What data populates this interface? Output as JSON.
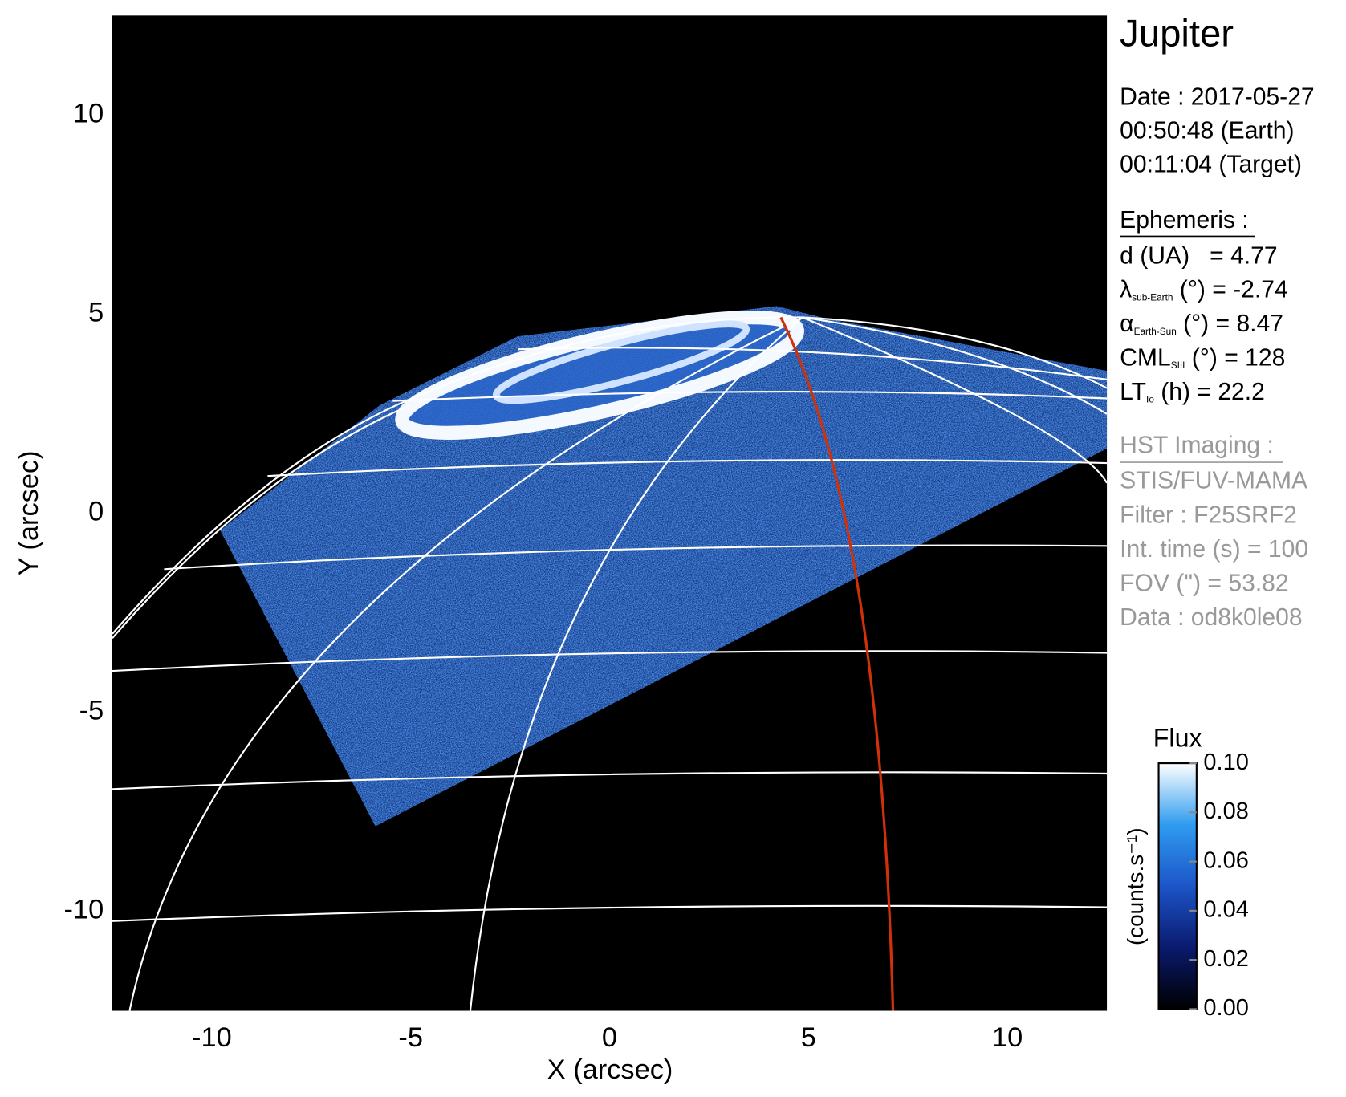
{
  "chart_data": {
    "type": "image",
    "xlabel": "X (arcsec)",
    "ylabel": "Y (arcsec)",
    "xlim": [
      -12.5,
      12.5
    ],
    "ylim": [
      -12.5,
      12.5
    ],
    "xticks": [
      -10,
      -5,
      0,
      5,
      10
    ],
    "yticks": [
      -10,
      -5,
      0,
      5,
      10
    ],
    "colorbar": {
      "title": "Flux",
      "label": "(counts.s⁻¹)",
      "lim": [
        0,
        0.1
      ],
      "colors": [
        "#000000",
        "#0a1a6e",
        "#1c55c8",
        "#2f9cf0",
        "#ffffff"
      ],
      "ticks": [
        {
          "value": 0,
          "label": "0.00"
        },
        {
          "value": 0.02,
          "label": "0.02"
        },
        {
          "value": 0.04,
          "label": "0.04"
        },
        {
          "value": 0.06,
          "label": "0.06"
        },
        {
          "value": 0.08,
          "label": "0.08"
        },
        {
          "value": 0.1,
          "label": "0.10"
        }
      ]
    }
  },
  "panel": {
    "title": "Jupiter",
    "date_lines": [
      "Date : 2017-05-27",
      "00:50:48 (Earth)",
      "00:11:04 (Target)"
    ],
    "ephemeris_heading": "Ephemeris :",
    "ephemeris": [
      {
        "name": "d (UA)",
        "text": "   = 4.77"
      },
      {
        "name": "λ",
        "subscript": "sub-Earth",
        "text": " (°) = -2.74"
      },
      {
        "name": "α",
        "subscript": "Earth-Sun",
        "text": " (°) = 8.47"
      },
      {
        "name": "CML",
        "subscript": "SIII",
        "text": " (°) = 128"
      },
      {
        "name": "LT",
        "subscript": "Io",
        "text": " (h) = 22.2"
      }
    ],
    "hst_heading": "HST Imaging :",
    "hst_lines": [
      "STIS/FUV-MAMA",
      "Filter : F25SRF2",
      "Int. time (s) = 100",
      "FOV (\") = 53.82",
      "Data : od8k0le08"
    ]
  }
}
